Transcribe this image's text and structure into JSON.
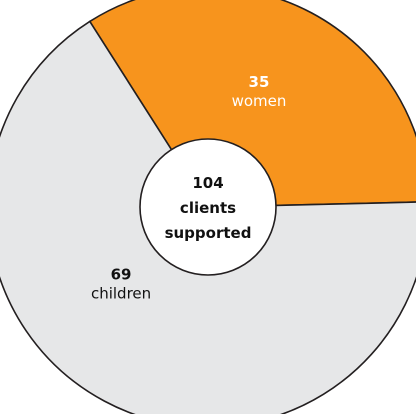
{
  "chart_data": {
    "type": "pie",
    "categories": [
      "women",
      "children"
    ],
    "values": [
      35,
      69
    ],
    "colors": [
      "#f7941d",
      "#e6e7e8"
    ],
    "label_colors": [
      "#ffffff",
      "#111111"
    ],
    "center": {
      "value": "104",
      "line2": "clients",
      "line3": "supported"
    }
  }
}
